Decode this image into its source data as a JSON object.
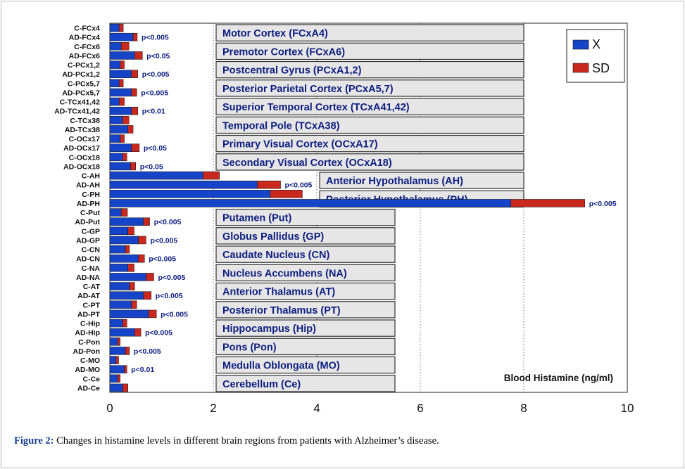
{
  "chart_data": {
    "type": "bar",
    "orientation": "horizontal",
    "stacked": true,
    "xlabel": "Blood Histamine (ng/ml)",
    "xlim": [
      0,
      10
    ],
    "x_ticks": [
      "0",
      "2",
      "4",
      "6",
      "8",
      "10"
    ],
    "grid": "vertical dotted",
    "legend": {
      "position": "top-right",
      "entries": [
        "X",
        "SD"
      ]
    },
    "colors": {
      "X": "#1644c8",
      "SD": "#c8281e"
    },
    "categories": [
      "C-FCx4",
      "AD-FCx4",
      "C-FCx6",
      "AD-FCx6",
      "C-PCx1,2",
      "AD-PCx1,2",
      "C-PCx5,7",
      "AD-PCx5,7",
      "C-TCx41,42",
      "AD-TCx41,42",
      "C-TCx38",
      "AD-TCx38",
      "C-OCx17",
      "AD-OCx17",
      "C-OCx18",
      "AD-OCx18",
      "C-AH",
      "AD-AH",
      "C-PH",
      "AD-PH",
      "C-Put",
      "AD-Put",
      "C-GP",
      "AD-GP",
      "C-CN",
      "AD-CN",
      "C-NA",
      "AD-NA",
      "C-AT",
      "AD-AT",
      "C-PT",
      "AD-PT",
      "C-Hip",
      "AD-Hip",
      "C-Pon",
      "AD-Pon",
      "C-MO",
      "AD-MO",
      "C-Ce",
      "AD-Ce"
    ],
    "series": [
      {
        "name": "X",
        "values": [
          0.18,
          0.45,
          0.22,
          0.48,
          0.2,
          0.42,
          0.18,
          0.42,
          0.18,
          0.42,
          0.25,
          0.35,
          0.2,
          0.42,
          0.25,
          0.4,
          1.8,
          2.85,
          3.1,
          7.75,
          0.22,
          0.65,
          0.35,
          0.55,
          0.3,
          0.55,
          0.35,
          0.7,
          0.38,
          0.65,
          0.42,
          0.75,
          0.25,
          0.48,
          0.15,
          0.3,
          0.12,
          0.28,
          0.15,
          0.25
        ]
      },
      {
        "name": "SD",
        "values": [
          0.08,
          0.08,
          0.15,
          0.15,
          0.08,
          0.12,
          0.08,
          0.1,
          0.1,
          0.12,
          0.12,
          0.1,
          0.08,
          0.15,
          0.08,
          0.1,
          0.32,
          0.45,
          0.62,
          1.43,
          0.12,
          0.12,
          0.12,
          0.15,
          0.08,
          0.12,
          0.12,
          0.15,
          0.1,
          0.15,
          0.1,
          0.15,
          0.08,
          0.12,
          0.05,
          0.08,
          0.05,
          0.05,
          0.05,
          0.1
        ]
      }
    ],
    "p_labels": [
      {
        "row": 1,
        "text": "p<0.005"
      },
      {
        "row": 3,
        "text": "p<0.05"
      },
      {
        "row": 5,
        "text": "p<0.005"
      },
      {
        "row": 7,
        "text": "p<0.005"
      },
      {
        "row": 9,
        "text": "p<0.01"
      },
      {
        "row": 13,
        "text": "p<0.05"
      },
      {
        "row": 15,
        "text": "p<0.05"
      },
      {
        "row": 17,
        "text": "p<0.005"
      },
      {
        "row": 19,
        "text": "p<0.005"
      },
      {
        "row": 21,
        "text": "p<0.005"
      },
      {
        "row": 23,
        "text": "p<0.005"
      },
      {
        "row": 25,
        "text": "p<0.005"
      },
      {
        "row": 27,
        "text": "p<0.005"
      },
      {
        "row": 29,
        "text": "p<0.005"
      },
      {
        "row": 31,
        "text": "p<0.005"
      },
      {
        "row": 33,
        "text": "p<0.005"
      },
      {
        "row": 35,
        "text": "p<0.005"
      },
      {
        "row": 37,
        "text": "p<0.01"
      }
    ],
    "region_labels": [
      {
        "text": "Motor Cortex (FCxA4)",
        "rows": [
          0,
          1
        ]
      },
      {
        "text": "Premotor Cortex (FCxA6)",
        "rows": [
          2,
          3
        ]
      },
      {
        "text": "Postcentral Gyrus (PCxA1,2)",
        "rows": [
          4,
          5
        ]
      },
      {
        "text": "Posterior Parietal Cortex (PCxA5,7)",
        "rows": [
          6,
          7
        ]
      },
      {
        "text": "Superior Temporal Cortex (TCxA41,42)",
        "rows": [
          8,
          9
        ]
      },
      {
        "text": "Temporal Pole (TCxA38)",
        "rows": [
          10,
          11
        ]
      },
      {
        "text": "Primary Visual Cortex (OCxA17)",
        "rows": [
          12,
          13
        ]
      },
      {
        "text": "Secondary Visual Cortex (OCxA18)",
        "rows": [
          14,
          15
        ]
      },
      {
        "text": "Anterior Hypothalamus (AH)",
        "rows": [
          16,
          17
        ]
      },
      {
        "text": "Posterior Hypothalamus (PH)",
        "rows": [
          18,
          19
        ]
      },
      {
        "text": "Putamen (Put)",
        "rows": [
          20,
          21
        ]
      },
      {
        "text": "Globus Pallidus (GP)",
        "rows": [
          22,
          23
        ]
      },
      {
        "text": "Caudate Nucleus (CN)",
        "rows": [
          24,
          25
        ]
      },
      {
        "text": "Nucleus Accumbens (NA)",
        "rows": [
          26,
          27
        ]
      },
      {
        "text": "Anterior Thalamus (AT)",
        "rows": [
          28,
          29
        ]
      },
      {
        "text": "Posterior Thalamus (PT)",
        "rows": [
          30,
          31
        ]
      },
      {
        "text": "Hippocampus (Hip)",
        "rows": [
          32,
          33
        ]
      },
      {
        "text": "Pons (Pon)",
        "rows": [
          34,
          35
        ]
      },
      {
        "text": "Medulla Oblongata (MO)",
        "rows": [
          36,
          37
        ]
      },
      {
        "text": "Cerebellum (Ce)",
        "rows": [
          38,
          39
        ]
      }
    ]
  },
  "caption": {
    "label": "Figure 2:",
    "text": " Changes in histamine levels in different brain regions from patients with Alzheimer’s disease."
  }
}
